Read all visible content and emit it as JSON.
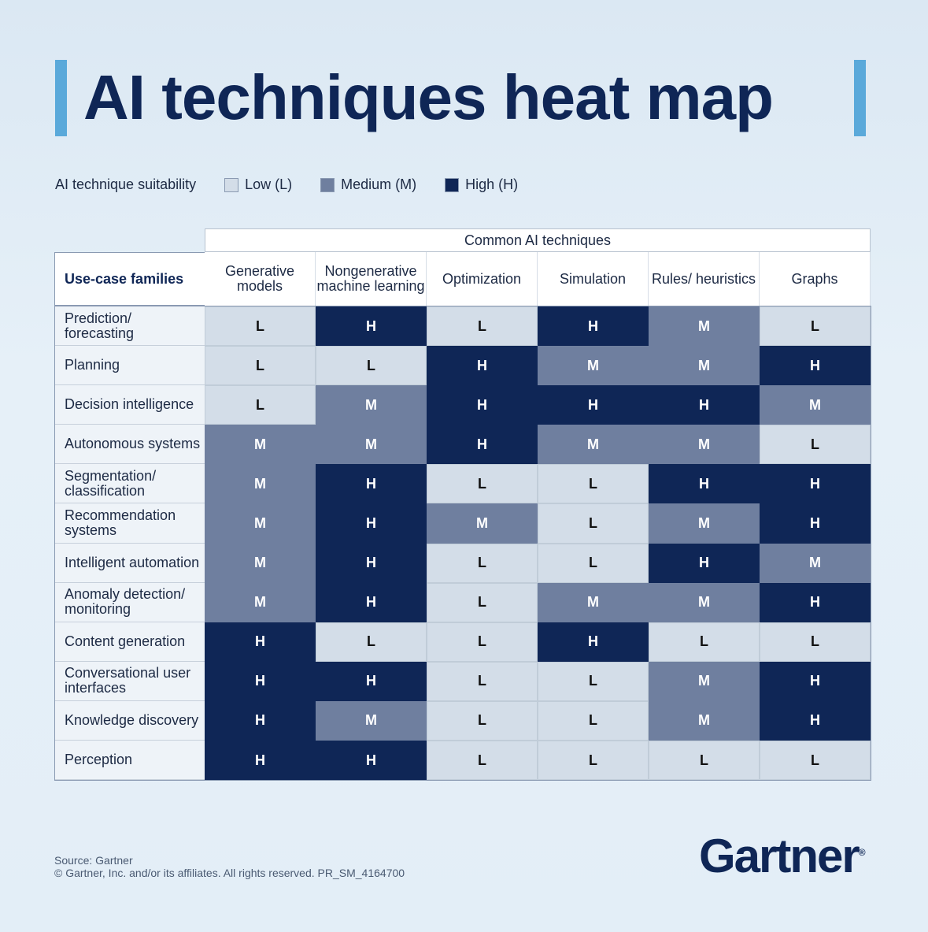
{
  "title": "AI techniques heat map",
  "legend": {
    "label": "AI technique suitability",
    "items": [
      {
        "key": "L",
        "label": "Low (L)",
        "color": "#d3dde8"
      },
      {
        "key": "M",
        "label": "Medium (M)",
        "color": "#6f7f9f"
      },
      {
        "key": "H",
        "label": "High (H)",
        "color": "#0f2656"
      }
    ]
  },
  "chart_data": {
    "type": "heatmap",
    "title": "AI techniques heat map",
    "column_group_label": "Common AI techniques",
    "row_header": "Use-case families",
    "columns": [
      "Generative models",
      "Nongenerative machine learning",
      "Optimization",
      "Simulation",
      "Rules/ heuristics",
      "Graphs"
    ],
    "rows": [
      {
        "label": "Prediction/ forecasting",
        "values": [
          "L",
          "H",
          "L",
          "H",
          "M",
          "L"
        ]
      },
      {
        "label": "Planning",
        "values": [
          "L",
          "L",
          "H",
          "M",
          "M",
          "H"
        ]
      },
      {
        "label": "Decision intelligence",
        "values": [
          "L",
          "M",
          "H",
          "H",
          "H",
          "M"
        ]
      },
      {
        "label": "Autonomous systems",
        "values": [
          "M",
          "M",
          "H",
          "M",
          "M",
          "L"
        ]
      },
      {
        "label": "Segmentation/ classification",
        "values": [
          "M",
          "H",
          "L",
          "L",
          "H",
          "H"
        ]
      },
      {
        "label": "Recommendation systems",
        "values": [
          "M",
          "H",
          "M",
          "L",
          "M",
          "H"
        ]
      },
      {
        "label": "Intelligent automation",
        "values": [
          "M",
          "H",
          "L",
          "L",
          "H",
          "M"
        ]
      },
      {
        "label": "Anomaly detection/ monitoring",
        "values": [
          "M",
          "H",
          "L",
          "M",
          "M",
          "H"
        ]
      },
      {
        "label": "Content generation",
        "values": [
          "H",
          "L",
          "L",
          "H",
          "L",
          "L"
        ]
      },
      {
        "label": "Conversational user interfaces",
        "values": [
          "H",
          "H",
          "L",
          "L",
          "M",
          "H"
        ]
      },
      {
        "label": "Knowledge discovery",
        "values": [
          "H",
          "M",
          "L",
          "L",
          "M",
          "H"
        ]
      },
      {
        "label": "Perception",
        "values": [
          "H",
          "H",
          "L",
          "L",
          "L",
          "L"
        ]
      }
    ]
  },
  "footer": {
    "source": "Source: Gartner",
    "copyright": "© Gartner, Inc. and/or its affiliates. All rights reserved. PR_SM_4164700",
    "logo": "Gartner"
  }
}
